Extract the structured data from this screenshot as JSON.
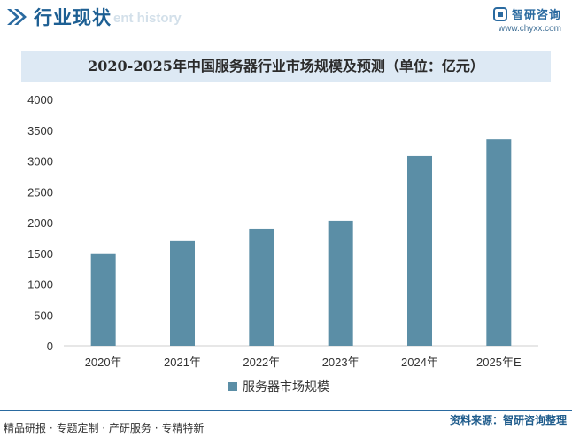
{
  "header": {
    "title": "行业现状",
    "subtitle": "ent history",
    "brand_name": "智研咨询",
    "brand_url": "www.chyxx.com"
  },
  "colors": {
    "bar": "#5b8ea6",
    "brand": "#2a6aa0",
    "title_band": "#dde9f4"
  },
  "chart_data": {
    "type": "bar",
    "title": "2020-2025年中国服务器行业市场规模及预测（单位：亿元）",
    "categories": [
      "2020年",
      "2021年",
      "2022年",
      "2023年",
      "2024年",
      "2025年E"
    ],
    "series": [
      {
        "name": "服务器市场规模",
        "values": [
          1500,
          1700,
          1900,
          2030,
          3080,
          3350
        ]
      }
    ],
    "ylim": [
      0,
      4000
    ],
    "yticks": [
      0,
      500,
      1000,
      1500,
      2000,
      2500,
      3000,
      3500,
      4000
    ],
    "grid": false,
    "legend": "bottom"
  },
  "footer": {
    "source": "资料来源：智研咨询整理",
    "tagline": "精品研报 · 专题定制 · 产研服务 · 专精特新"
  }
}
